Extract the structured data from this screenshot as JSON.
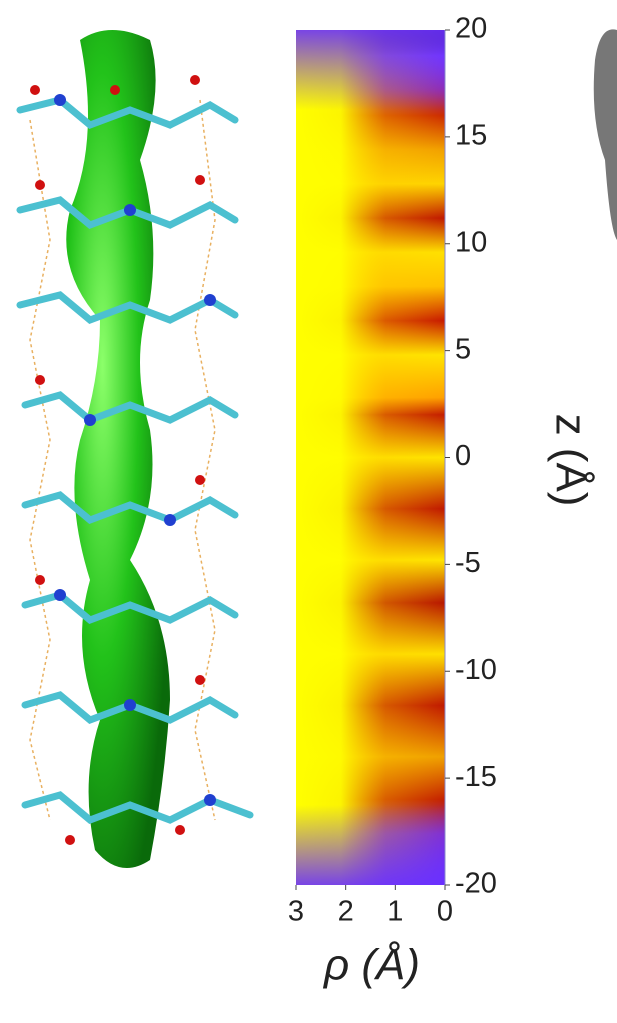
{
  "chart_data": {
    "type": "heatmap",
    "xlabel": "ρ (Å)",
    "ylabel": "z (Å)",
    "xlim": [
      3,
      0
    ],
    "ylim": [
      -20,
      20
    ],
    "xticks": [
      3,
      2,
      1,
      0
    ],
    "yticks": [
      20,
      15,
      10,
      5,
      0,
      -5,
      -10,
      -15,
      -20
    ]
  }
}
